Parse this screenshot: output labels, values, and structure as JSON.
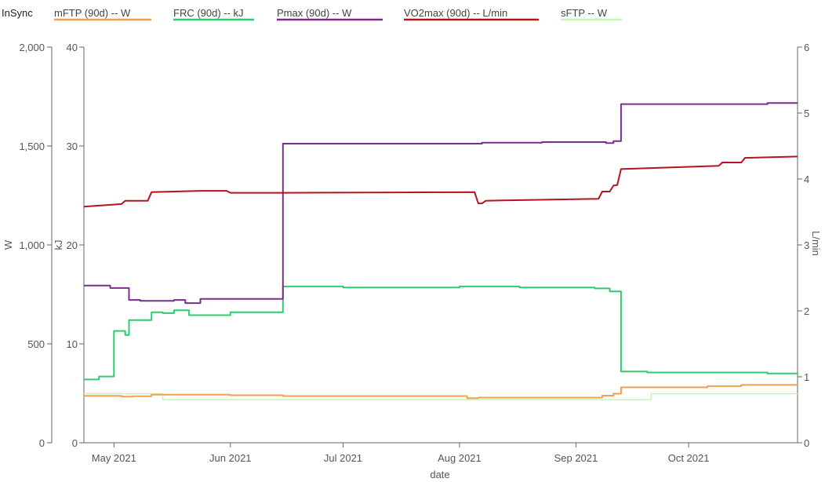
{
  "app": {
    "title": "InSync"
  },
  "chart_data": {
    "type": "line",
    "xlabel": "date",
    "x_ticks": [
      "May 2021",
      "Jun 2021",
      "Jul 2021",
      "Aug 2021",
      "Sep 2021",
      "Oct 2021"
    ],
    "x_range": [
      "2021-04-23",
      "2021-10-30"
    ],
    "grid": false,
    "legend_position": "top",
    "axes": [
      {
        "id": "W",
        "label": "W",
        "side": "left",
        "range": [
          0,
          2000
        ],
        "ticks": [
          "0",
          "500",
          "1,000",
          "1,500",
          "2,000"
        ]
      },
      {
        "id": "kJ",
        "label": "kJ",
        "side": "left-inner",
        "range": [
          0,
          40
        ],
        "ticks": [
          "0",
          "10",
          "20",
          "30",
          "40"
        ]
      },
      {
        "id": "L/min",
        "label": "L/min",
        "side": "right",
        "range": [
          0,
          6
        ],
        "ticks": [
          "0",
          "1",
          "2",
          "3",
          "4",
          "5",
          "6"
        ]
      }
    ],
    "series": [
      {
        "name": "mFTP (90d)  -- W",
        "axis": "W",
        "color": "#f0a050",
        "step": true,
        "points": [
          [
            "2021-04-23",
            237
          ],
          [
            "2021-05-03",
            233
          ],
          [
            "2021-05-06",
            235
          ],
          [
            "2021-05-11",
            243
          ],
          [
            "2021-06-01",
            240
          ],
          [
            "2021-06-15",
            236
          ],
          [
            "2021-08-03",
            225
          ],
          [
            "2021-08-06",
            228
          ],
          [
            "2021-09-08",
            238
          ],
          [
            "2021-09-11",
            248
          ],
          [
            "2021-09-13",
            280
          ],
          [
            "2021-10-06",
            286
          ],
          [
            "2021-10-15",
            292
          ],
          [
            "2021-10-30",
            295
          ]
        ]
      },
      {
        "name": "FRC (90d)  -- kJ",
        "axis": "kJ",
        "color": "#2ecc71",
        "step": true,
        "points": [
          [
            "2021-04-23",
            6.4
          ],
          [
            "2021-04-27",
            6.7
          ],
          [
            "2021-05-01",
            11.3
          ],
          [
            "2021-05-04",
            10.9
          ],
          [
            "2021-05-05",
            12.4
          ],
          [
            "2021-05-11",
            13.2
          ],
          [
            "2021-05-14",
            13.1
          ],
          [
            "2021-05-17",
            13.4
          ],
          [
            "2021-05-21",
            12.9
          ],
          [
            "2021-06-01",
            13.2
          ],
          [
            "2021-06-15",
            15.8
          ],
          [
            "2021-07-01",
            15.7
          ],
          [
            "2021-08-01",
            15.8
          ],
          [
            "2021-08-17",
            15.7
          ],
          [
            "2021-09-06",
            15.6
          ],
          [
            "2021-09-10",
            15.3
          ],
          [
            "2021-09-13",
            7.2
          ],
          [
            "2021-09-20",
            7.1
          ],
          [
            "2021-10-22",
            7.0
          ],
          [
            "2021-10-30",
            7.0
          ]
        ]
      },
      {
        "name": "Pmax (90d)  -- W",
        "axis": "W",
        "color": "#7b2d8e",
        "step": true,
        "points": [
          [
            "2021-04-23",
            795
          ],
          [
            "2021-04-30",
            782
          ],
          [
            "2021-05-05",
            722
          ],
          [
            "2021-05-08",
            717
          ],
          [
            "2021-05-17",
            722
          ],
          [
            "2021-05-20",
            706
          ],
          [
            "2021-05-24",
            727
          ],
          [
            "2021-06-15",
            1512
          ],
          [
            "2021-08-07",
            1517
          ],
          [
            "2021-08-23",
            1520
          ],
          [
            "2021-09-09",
            1515
          ],
          [
            "2021-09-11",
            1525
          ],
          [
            "2021-09-13",
            1712
          ],
          [
            "2021-10-22",
            1717
          ],
          [
            "2021-10-30",
            1717
          ]
        ]
      },
      {
        "name": "VO2max (90d)  -- L/min",
        "axis": "L/min",
        "color": "#b5141e",
        "points": [
          [
            "2021-04-23",
            3.58
          ],
          [
            "2021-05-03",
            3.62
          ],
          [
            "2021-05-04",
            3.67
          ],
          [
            "2021-05-10",
            3.67
          ],
          [
            "2021-05-11",
            3.8
          ],
          [
            "2021-05-24",
            3.82
          ],
          [
            "2021-05-31",
            3.82
          ],
          [
            "2021-06-01",
            3.79
          ],
          [
            "2021-06-15",
            3.79
          ],
          [
            "2021-08-05",
            3.8
          ],
          [
            "2021-08-06",
            3.63
          ],
          [
            "2021-08-07",
            3.63
          ],
          [
            "2021-08-08",
            3.67
          ],
          [
            "2021-09-07",
            3.7
          ],
          [
            "2021-09-08",
            3.81
          ],
          [
            "2021-09-10",
            3.81
          ],
          [
            "2021-09-11",
            3.9
          ],
          [
            "2021-09-12",
            3.91
          ],
          [
            "2021-09-13",
            4.15
          ],
          [
            "2021-10-09",
            4.2
          ],
          [
            "2021-10-10",
            4.25
          ],
          [
            "2021-10-15",
            4.25
          ],
          [
            "2021-10-16",
            4.32
          ],
          [
            "2021-10-30",
            4.34
          ]
        ]
      },
      {
        "name": "sFTP  -- W",
        "axis": "W",
        "color": "#c6f5b6",
        "step": true,
        "points": [
          [
            "2021-04-23",
            248
          ],
          [
            "2021-05-14",
            218
          ],
          [
            "2021-09-21",
            248
          ],
          [
            "2021-10-30",
            248
          ]
        ]
      }
    ]
  }
}
